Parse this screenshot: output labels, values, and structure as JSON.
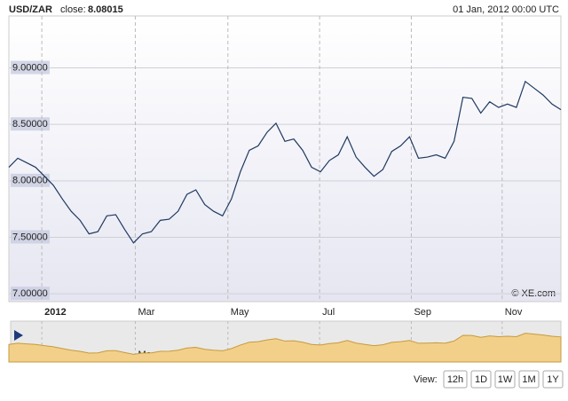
{
  "header": {
    "pair": "USD/ZAR",
    "close_label": "close:",
    "close_value": "8.08015",
    "timestamp": "01 Jan, 2012 00:00 UTC"
  },
  "chart_data": {
    "type": "line",
    "color": "#1f3a5f",
    "values": [
      8.12,
      8.2,
      8.16,
      8.12,
      8.04,
      7.96,
      7.84,
      7.73,
      7.65,
      7.53,
      7.55,
      7.69,
      7.7,
      7.57,
      7.45,
      7.53,
      7.55,
      7.65,
      7.66,
      7.73,
      7.88,
      7.92,
      7.79,
      7.73,
      7.69,
      7.84,
      8.08,
      8.27,
      8.31,
      8.43,
      8.51,
      8.35,
      8.37,
      8.27,
      8.12,
      8.08,
      8.18,
      8.23,
      8.39,
      8.21,
      8.12,
      8.04,
      8.1,
      8.26,
      8.31,
      8.39,
      8.2,
      8.21,
      8.23,
      8.2,
      8.35,
      8.74,
      8.73,
      8.6,
      8.7,
      8.65,
      8.68,
      8.65,
      8.88,
      8.82,
      8.76,
      8.68,
      8.63
    ],
    "xlim": [
      0,
      62
    ],
    "xticks": [
      {
        "value": 3.7,
        "label": "2012"
      },
      {
        "value": 14.2,
        "label": "Mar"
      },
      {
        "value": 24.6,
        "label": "May"
      },
      {
        "value": 34.9,
        "label": "Jul"
      },
      {
        "value": 45.2,
        "label": "Sep"
      },
      {
        "value": 55.4,
        "label": "Nov"
      }
    ],
    "ylim": [
      6.93,
      9.46
    ],
    "yticks": [
      {
        "value": 7,
        "label": "7.00000"
      },
      {
        "value": 7.5,
        "label": "7.50000"
      },
      {
        "value": 8,
        "label": "8.00000"
      },
      {
        "value": 8.5,
        "label": "8.50000"
      },
      {
        "value": 9,
        "label": "9.00000"
      }
    ],
    "grid": true,
    "navigator_color": "#f3d08a",
    "watermark": "© XE.com"
  },
  "controls": {
    "view_label": "View:",
    "buttons": [
      "12h",
      "1D",
      "1W",
      "1M",
      "1Y"
    ],
    "selected": "1Y"
  }
}
